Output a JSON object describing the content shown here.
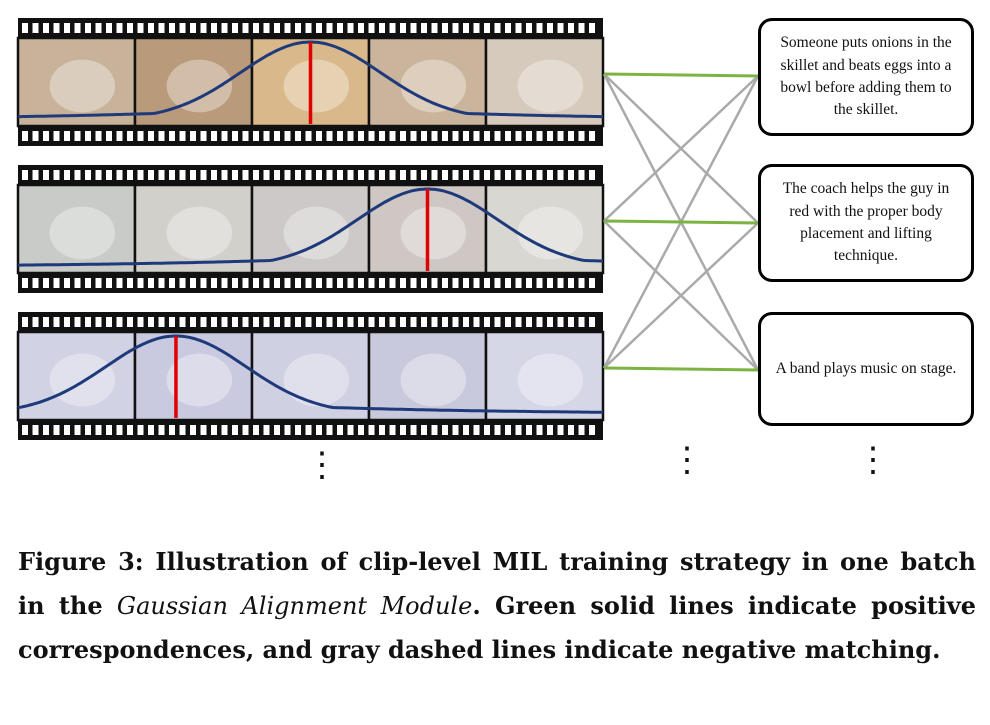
{
  "captions": [
    "Someone puts onions in the skillet and beats eggs into a bowl before adding them to the skillet.",
    "The coach helps the guy in red with the proper body placement and lifting technique.",
    "A band plays music on stage."
  ],
  "filmstrips": [
    {
      "peak_frame_fraction": 0.5,
      "frame_tint": [
        "#c8b29a",
        "#b99a7a",
        "#d9b98b",
        "#cbb49c",
        "#d6cabc"
      ]
    },
    {
      "peak_frame_fraction": 0.7,
      "frame_tint": [
        "#c8cbc8",
        "#d2d0cb",
        "#ccc9c8",
        "#cfc7c4",
        "#d9d7d2"
      ]
    },
    {
      "peak_frame_fraction": 0.27,
      "frame_tint": [
        "#d1d2e3",
        "#c9cadf",
        "#cfd0e2",
        "#c8c9dc",
        "#d5d6e6"
      ]
    }
  ],
  "colors": {
    "positive": "#7cb342",
    "negative": "#aaaaaa",
    "curve": "#1f3a7a",
    "peak": "#e00000"
  },
  "vdots": [
    "⋮",
    "⋮",
    "⋮"
  ],
  "caption": {
    "prefix": "Figure 3: Illustration of clip-level MIL training strategy in one batch in the ",
    "emphasis": "Gaussian Alignment Module",
    "suffix": ". Green solid lines indicate positive correspondences, and gray dashed lines indicate negative matching."
  }
}
